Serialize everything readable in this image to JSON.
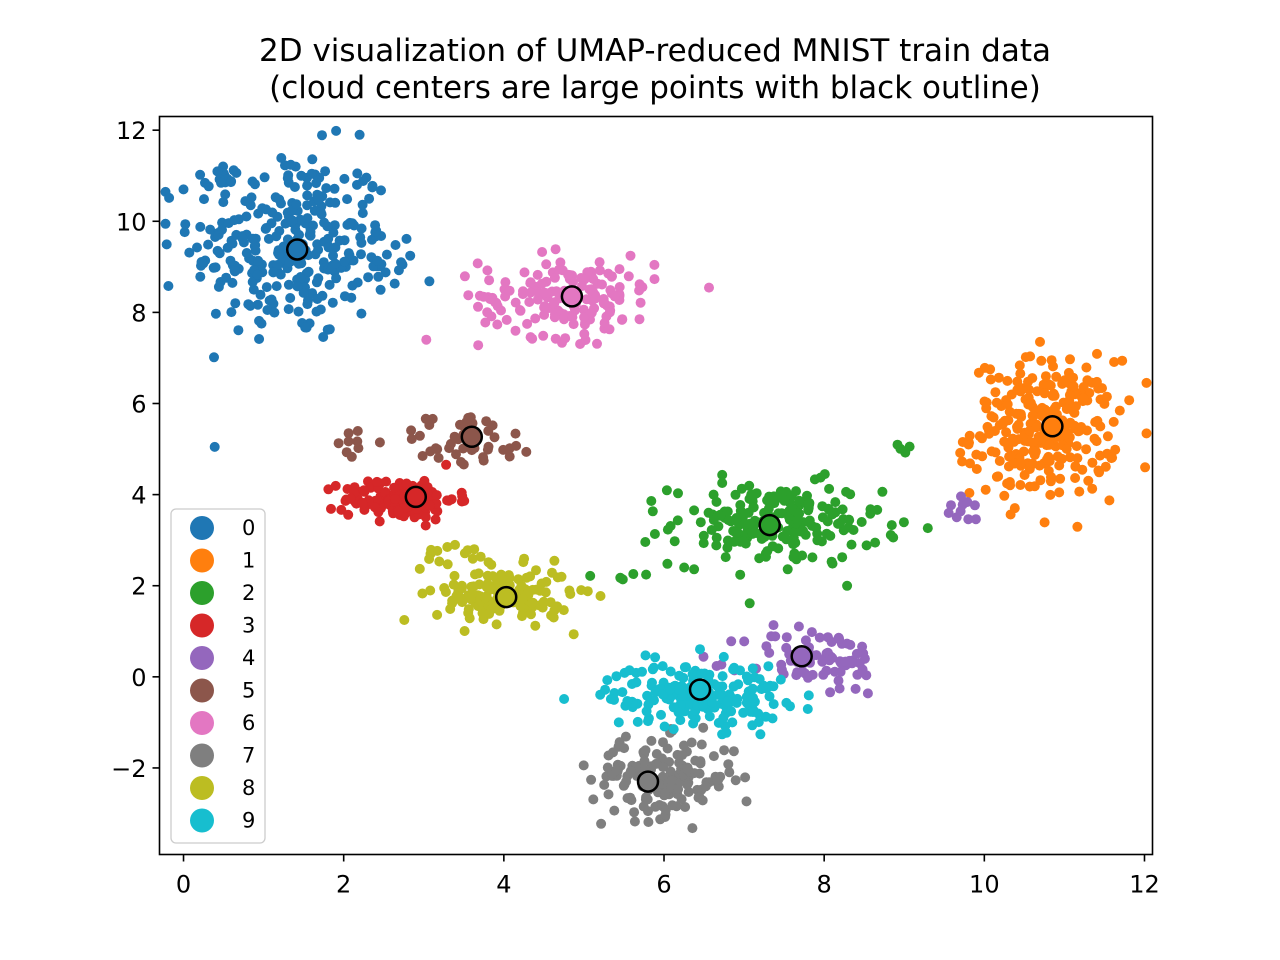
{
  "chart_data": {
    "type": "scatter",
    "title": "2D visualization of UMAP-reduced MNIST train data",
    "subtitle": "(cloud centers are large points with black outline)",
    "xlabel": "",
    "ylabel": "",
    "xlim": [
      -0.3,
      12.1
    ],
    "ylim": [
      -3.9,
      12.3
    ],
    "x_ticks": [
      0,
      2,
      4,
      6,
      8,
      10,
      12
    ],
    "y_ticks": [
      -2,
      0,
      2,
      4,
      6,
      8,
      10,
      12
    ],
    "x_tick_labels": [
      "0",
      "2",
      "4",
      "6",
      "8",
      "10",
      "12"
    ],
    "y_tick_labels": [
      "−2",
      "0",
      "2",
      "4",
      "6",
      "8",
      "10",
      "12"
    ],
    "grid": false,
    "legend_position": "lower-left",
    "series": [
      {
        "name": "0",
        "color": "#1f77b4",
        "center": [
          1.42,
          9.38
        ],
        "clusters": [
          {
            "cx": 1.35,
            "cy": 9.45,
            "sx": 0.62,
            "sy": 1.05,
            "n": 300
          },
          {
            "cx": 0.45,
            "cy": 11.0,
            "sx": 0.18,
            "sy": 0.1,
            "n": 14
          },
          {
            "cx": 2.55,
            "cy": 9.1,
            "sx": 0.18,
            "sy": 0.45,
            "n": 14
          }
        ]
      },
      {
        "name": "1",
        "color": "#ff7f0e",
        "center": [
          10.85,
          5.5
        ],
        "clusters": [
          {
            "cx": 10.75,
            "cy": 5.45,
            "sx": 0.45,
            "sy": 0.75,
            "n": 280
          }
        ]
      },
      {
        "name": "2",
        "color": "#2ca02c",
        "center": [
          7.32,
          3.33
        ],
        "clusters": [
          {
            "cx": 7.4,
            "cy": 3.35,
            "sx": 0.65,
            "sy": 0.45,
            "n": 200
          },
          {
            "cx": 5.55,
            "cy": 2.25,
            "sx": 0.22,
            "sy": 0.08,
            "n": 5
          },
          {
            "cx": 8.98,
            "cy": 5.0,
            "sx": 0.05,
            "sy": 0.08,
            "n": 4
          }
        ]
      },
      {
        "name": "3",
        "color": "#d62728",
        "center": [
          2.9,
          3.95
        ],
        "clusters": [
          {
            "cx": 2.7,
            "cy": 3.9,
            "sx": 0.35,
            "sy": 0.22,
            "n": 150
          }
        ]
      },
      {
        "name": "4",
        "color": "#9467bd",
        "center": [
          7.72,
          0.45
        ],
        "clusters": [
          {
            "cx": 7.9,
            "cy": 0.35,
            "sx": 0.45,
            "sy": 0.38,
            "n": 80
          },
          {
            "cx": 9.8,
            "cy": 3.65,
            "sx": 0.15,
            "sy": 0.15,
            "n": 10
          }
        ]
      },
      {
        "name": "5",
        "color": "#8c564b",
        "center": [
          3.6,
          5.27
        ],
        "clusters": [
          {
            "cx": 3.55,
            "cy": 5.2,
            "sx": 0.45,
            "sy": 0.3,
            "n": 45
          },
          {
            "cx": 2.15,
            "cy": 5.15,
            "sx": 0.08,
            "sy": 0.15,
            "n": 8
          }
        ]
      },
      {
        "name": "6",
        "color": "#e377c2",
        "center": [
          4.85,
          8.35
        ],
        "clusters": [
          {
            "cx": 4.8,
            "cy": 8.35,
            "sx": 0.55,
            "sy": 0.45,
            "n": 170
          }
        ]
      },
      {
        "name": "7",
        "color": "#7f7f7f",
        "center": [
          5.8,
          -2.3
        ],
        "clusters": [
          {
            "cx": 6.0,
            "cy": -2.2,
            "sx": 0.45,
            "sy": 0.42,
            "n": 170
          }
        ]
      },
      {
        "name": "8",
        "color": "#bcbd22",
        "center": [
          4.03,
          1.75
        ],
        "clusters": [
          {
            "cx": 4.0,
            "cy": 1.8,
            "sx": 0.42,
            "sy": 0.3,
            "n": 150
          },
          {
            "cx": 3.35,
            "cy": 2.7,
            "sx": 0.25,
            "sy": 0.15,
            "n": 15
          }
        ]
      },
      {
        "name": "9",
        "color": "#17becf",
        "center": [
          6.45,
          -0.28
        ],
        "clusters": [
          {
            "cx": 6.4,
            "cy": -0.4,
            "sx": 0.55,
            "sy": 0.35,
            "n": 190
          }
        ]
      }
    ]
  }
}
